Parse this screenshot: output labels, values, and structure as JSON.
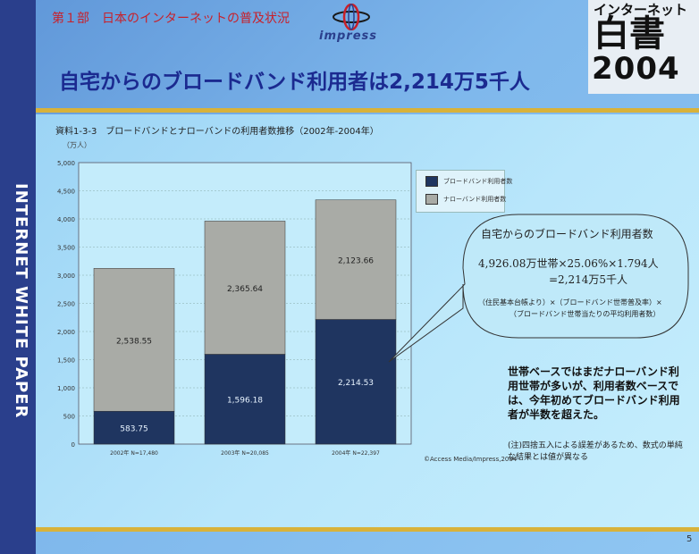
{
  "header": {
    "section_label": "第１部　日本のインターネットの普及状況",
    "logo_text": "impress",
    "main_title": "自宅からのブロードバンド利用者は2,214万5千人",
    "book_title_line1": "インターネット",
    "book_title_line2": "白書",
    "book_title_line3": "2004"
  },
  "side_band_text": "INTERNET WHITE PAPER",
  "chart_title": "資料1-3-3　ブロードバンドとナローバンドの利用者数推移（2002年-2004年）",
  "unit": "（万人）",
  "chart_data": {
    "type": "bar",
    "stacked": true,
    "title": "資料1-3-3　ブロードバンドとナローバンドの利用者数推移（2002年-2004年）",
    "categories": [
      "2002年 N=17,480",
      "2003年 N=20,085",
      "2004年 N=22,397"
    ],
    "series": [
      {
        "name": "ブロードバンド利用者数",
        "values": [
          583.75,
          1596.18,
          2214.53
        ],
        "color": "#1f3560"
      },
      {
        "name": "ナローバンド利用者数",
        "values": [
          2538.55,
          2365.64,
          2123.66
        ],
        "color": "#a9aba6"
      }
    ],
    "data_labels": [
      [
        "583.75",
        "1,596.18",
        "2,214.53"
      ],
      [
        "2,538.55",
        "2,365.64",
        "2,123.66"
      ]
    ],
    "yticks": [
      "0",
      "500",
      "1,000",
      "1,500",
      "2,000",
      "2,500",
      "3,000",
      "3,500",
      "4,000",
      "4,500",
      "5,000"
    ],
    "ylim": [
      0,
      5000
    ],
    "ylabel": "（万人）",
    "xlabel": "",
    "grid": true,
    "legend_position": "right"
  },
  "callout": {
    "title": "自宅からのブロードバンド利用者数",
    "equation_line1": "4,926.08万世帯×25.06%×1.794人",
    "equation_line2": "=2,214万5千人",
    "note_line1": "（住民基本台帳より）×（ブロードバンド世帯普及率）×",
    "note_line2": "（ブロードバンド世帯当たりの平均利用者数）"
  },
  "commentary": "世帯ベースではまだナローバンド利用世帯が多いが、利用者数ベースでは、今年初めてブロードバンド利用者が半数を超えた。",
  "footnote": "(注)四捨五入による誤差があるため、数式の単純な結果とは値が異なる",
  "source": "©Access Media/Impress,2004",
  "page_number": "5",
  "colors": {
    "accent_blue": "#1b2a90",
    "band_navy": "#2a3f8c",
    "gold": "#d8b23a",
    "section_red": "#c8202a"
  }
}
